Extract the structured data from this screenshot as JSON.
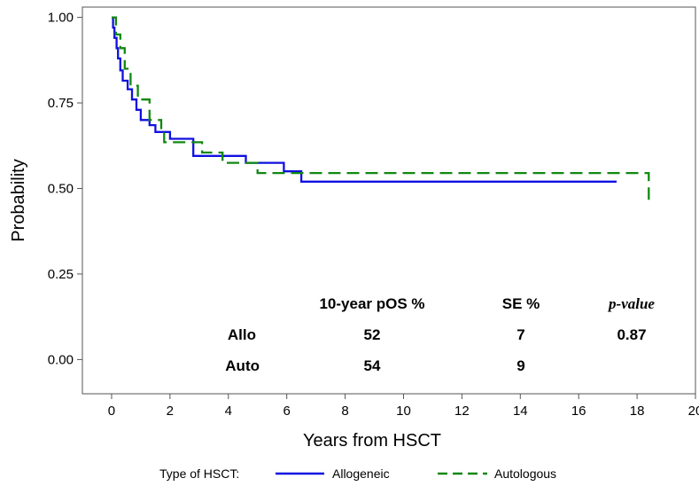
{
  "chart_data": {
    "type": "line",
    "step": true,
    "xlabel": "Years from HSCT",
    "ylabel": "Probability",
    "xlim": [
      -1,
      20
    ],
    "ylim": [
      -0.1,
      1.03
    ],
    "xticks": [
      0,
      2,
      4,
      6,
      8,
      10,
      12,
      14,
      16,
      18,
      20
    ],
    "yticks": [
      0.0,
      0.25,
      0.5,
      0.75,
      1.0
    ],
    "ytick_labels": [
      "0.00",
      "0.25",
      "0.50",
      "0.75",
      "1.00"
    ],
    "series": [
      {
        "name": "Allogeneic",
        "color": "#1010e0",
        "style": "solid",
        "points": [
          [
            0,
            1.0
          ],
          [
            0.05,
            0.97
          ],
          [
            0.1,
            0.94
          ],
          [
            0.17,
            0.91
          ],
          [
            0.22,
            0.88
          ],
          [
            0.3,
            0.845
          ],
          [
            0.38,
            0.815
          ],
          [
            0.55,
            0.79
          ],
          [
            0.7,
            0.76
          ],
          [
            0.85,
            0.73
          ],
          [
            1.0,
            0.7
          ],
          [
            1.3,
            0.685
          ],
          [
            1.5,
            0.665
          ],
          [
            2.0,
            0.645
          ],
          [
            2.8,
            0.595
          ],
          [
            4.6,
            0.575
          ],
          [
            5.9,
            0.55
          ],
          [
            6.5,
            0.52
          ],
          [
            17.3,
            0.52
          ]
        ]
      },
      {
        "name": "Autologous",
        "color": "#118811",
        "style": "dashed",
        "points": [
          [
            0,
            1.0
          ],
          [
            0.15,
            0.95
          ],
          [
            0.3,
            0.91
          ],
          [
            0.45,
            0.85
          ],
          [
            0.65,
            0.8
          ],
          [
            0.9,
            0.76
          ],
          [
            1.3,
            0.7
          ],
          [
            1.7,
            0.665
          ],
          [
            1.8,
            0.635
          ],
          [
            2.7,
            0.635
          ],
          [
            3.1,
            0.605
          ],
          [
            3.8,
            0.575
          ],
          [
            5.0,
            0.545
          ],
          [
            18.4,
            0.545
          ],
          [
            18.4,
            0.45
          ]
        ]
      }
    ]
  },
  "stats_table": {
    "headers": [
      "10-year pOS %",
      "SE %",
      "p-value"
    ],
    "rows": [
      {
        "label": "Allo",
        "pos": "52",
        "se": "7",
        "pvalue": "0.87"
      },
      {
        "label": "Auto",
        "pos": "54",
        "se": "9",
        "pvalue": ""
      }
    ]
  },
  "legend": {
    "title": "Type of HSCT:",
    "items": [
      "Allogeneic",
      "Autologous"
    ]
  }
}
